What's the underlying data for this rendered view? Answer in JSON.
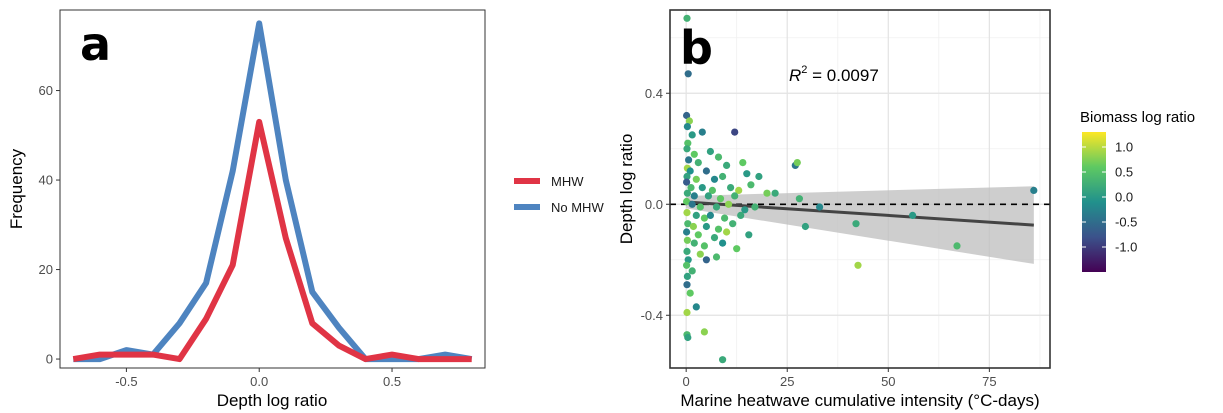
{
  "chart_data": [
    {
      "panel_label": "a",
      "type": "line",
      "xlabel": "Depth log ratio",
      "ylabel": "Frequency",
      "xlim": [
        -0.75,
        0.85
      ],
      "ylim": [
        -2,
        78
      ],
      "x_ticks": [
        -0.5,
        0.0,
        0.5
      ],
      "x_tick_labels": [
        "-0.5",
        "0.0",
        "0.5"
      ],
      "y_ticks": [
        0,
        20,
        40,
        60
      ],
      "y_tick_labels": [
        "0",
        "20",
        "40",
        "60"
      ],
      "grid": false,
      "legend_position": "right",
      "x": [
        -0.7,
        -0.6,
        -0.5,
        -0.4,
        -0.3,
        -0.2,
        -0.1,
        0.0,
        0.1,
        0.2,
        0.3,
        0.4,
        0.5,
        0.6,
        0.7,
        0.8
      ],
      "series": [
        {
          "name": "MHW",
          "color": "#e03445",
          "values": [
            0,
            1,
            1,
            1,
            0,
            9,
            21,
            53,
            27,
            8,
            3,
            0,
            1,
            0,
            0,
            0
          ]
        },
        {
          "name": "No MHW",
          "color": "#4e84c0",
          "values": [
            0,
            0,
            2,
            1,
            8,
            17,
            42,
            75,
            40,
            15,
            7,
            0,
            0,
            0,
            1,
            0
          ]
        }
      ]
    },
    {
      "panel_label": "b",
      "type": "scatter",
      "xlabel": "Marine heatwave cumulative intensity (°C-days)",
      "ylabel": "Depth log ratio",
      "xlim": [
        -4,
        90
      ],
      "ylim": [
        -0.59,
        0.7
      ],
      "x_ticks": [
        0,
        25,
        50,
        75
      ],
      "x_tick_labels": [
        "0",
        "25",
        "50",
        "75"
      ],
      "y_ticks": [
        -0.4,
        0.0,
        0.4
      ],
      "y_tick_labels": [
        "-0.4",
        "0.0",
        "0.4"
      ],
      "grid": true,
      "annotation": {
        "prefix": "R",
        "superscript": "2",
        "text": " = 0.0097"
      },
      "reference_line_y": 0,
      "regression": {
        "x": [
          0,
          86
        ],
        "y": [
          0.008,
          -0.075
        ],
        "ci_upper_end": 0.065,
        "ci_lower_end": -0.215,
        "ci_at_zero": [
          -0.015,
          0.03
        ]
      },
      "colorbar": {
        "title": "Biomass log ratio",
        "range": [
          -1.5,
          1.3
        ],
        "ticks": [
          1.0,
          0.5,
          0.0,
          -0.5,
          -1.0
        ],
        "tick_labels": [
          "1.0",
          "0.5",
          "0.0",
          "-0.5",
          "-1.0"
        ],
        "palette": "viridis"
      },
      "points": [
        {
          "x": 0.2,
          "y": 0.67,
          "c": 0.3
        },
        {
          "x": 0.5,
          "y": 0.47,
          "c": -0.5
        },
        {
          "x": 0.1,
          "y": 0.32,
          "c": -0.6
        },
        {
          "x": 0.8,
          "y": 0.3,
          "c": 0.8
        },
        {
          "x": 0.3,
          "y": 0.28,
          "c": -0.2
        },
        {
          "x": 1.5,
          "y": 0.25,
          "c": 0.0
        },
        {
          "x": 4.0,
          "y": 0.26,
          "c": -0.3
        },
        {
          "x": 12.0,
          "y": 0.26,
          "c": -0.9
        },
        {
          "x": 0.4,
          "y": 0.22,
          "c": 0.5
        },
        {
          "x": 0.2,
          "y": 0.2,
          "c": 0.2
        },
        {
          "x": 2.0,
          "y": 0.18,
          "c": 0.6
        },
        {
          "x": 6.0,
          "y": 0.19,
          "c": 0.1
        },
        {
          "x": 0.6,
          "y": 0.16,
          "c": -0.4
        },
        {
          "x": 3.0,
          "y": 0.15,
          "c": 0.3
        },
        {
          "x": 8.0,
          "y": 0.17,
          "c": 0.4
        },
        {
          "x": 0.3,
          "y": 0.13,
          "c": 0.9
        },
        {
          "x": 1.0,
          "y": 0.12,
          "c": -0.1
        },
        {
          "x": 5.0,
          "y": 0.12,
          "c": -0.5
        },
        {
          "x": 10.0,
          "y": 0.14,
          "c": 0.2
        },
        {
          "x": 14.0,
          "y": 0.15,
          "c": 0.6
        },
        {
          "x": 15.0,
          "y": 0.11,
          "c": 0.0
        },
        {
          "x": 0.2,
          "y": 0.1,
          "c": 0.1
        },
        {
          "x": 2.5,
          "y": 0.09,
          "c": 0.7
        },
        {
          "x": 7.0,
          "y": 0.09,
          "c": -0.2
        },
        {
          "x": 9.0,
          "y": 0.1,
          "c": 0.3
        },
        {
          "x": 18.0,
          "y": 0.1,
          "c": 0.1
        },
        {
          "x": 0.1,
          "y": 0.08,
          "c": -0.7
        },
        {
          "x": 1.2,
          "y": 0.06,
          "c": 0.4
        },
        {
          "x": 4.0,
          "y": 0.06,
          "c": 0.0
        },
        {
          "x": 6.5,
          "y": 0.05,
          "c": 0.5
        },
        {
          "x": 11.0,
          "y": 0.06,
          "c": 0.2
        },
        {
          "x": 13.0,
          "y": 0.05,
          "c": 0.9
        },
        {
          "x": 16.0,
          "y": 0.07,
          "c": 0.4
        },
        {
          "x": 0.3,
          "y": 0.04,
          "c": 0.2
        },
        {
          "x": 2.0,
          "y": 0.03,
          "c": -0.3
        },
        {
          "x": 5.5,
          "y": 0.03,
          "c": 0.1
        },
        {
          "x": 8.5,
          "y": 0.02,
          "c": 0.6
        },
        {
          "x": 12.0,
          "y": 0.03,
          "c": 0.3
        },
        {
          "x": 20.0,
          "y": 0.04,
          "c": 0.7
        },
        {
          "x": 0.1,
          "y": 0.01,
          "c": 0.6
        },
        {
          "x": 1.5,
          "y": 0.0,
          "c": -0.4
        },
        {
          "x": 3.5,
          "y": -0.01,
          "c": 0.5
        },
        {
          "x": 7.5,
          "y": -0.01,
          "c": 0.2
        },
        {
          "x": 10.5,
          "y": 0.0,
          "c": 0.8
        },
        {
          "x": 14.5,
          "y": -0.02,
          "c": 0.0
        },
        {
          "x": 17.0,
          "y": -0.01,
          "c": 0.3
        },
        {
          "x": 0.2,
          "y": -0.03,
          "c": 0.9
        },
        {
          "x": 2.5,
          "y": -0.04,
          "c": 0.1
        },
        {
          "x": 4.5,
          "y": -0.05,
          "c": 0.6
        },
        {
          "x": 6.0,
          "y": -0.04,
          "c": -0.2
        },
        {
          "x": 9.5,
          "y": -0.05,
          "c": 0.4
        },
        {
          "x": 13.5,
          "y": -0.04,
          "c": 0.2
        },
        {
          "x": 0.4,
          "y": -0.07,
          "c": 0.4
        },
        {
          "x": 1.8,
          "y": -0.08,
          "c": 0.8
        },
        {
          "x": 5.0,
          "y": -0.08,
          "c": 0.0
        },
        {
          "x": 8.0,
          "y": -0.09,
          "c": 0.5
        },
        {
          "x": 11.5,
          "y": -0.07,
          "c": 0.3
        },
        {
          "x": 0.1,
          "y": -0.1,
          "c": -0.3
        },
        {
          "x": 3.0,
          "y": -0.11,
          "c": 0.6
        },
        {
          "x": 7.0,
          "y": -0.12,
          "c": 0.2
        },
        {
          "x": 10.0,
          "y": -0.1,
          "c": 0.9
        },
        {
          "x": 15.5,
          "y": -0.11,
          "c": 0.1
        },
        {
          "x": 0.3,
          "y": -0.13,
          "c": 0.7
        },
        {
          "x": 2.0,
          "y": -0.14,
          "c": 0.3
        },
        {
          "x": 4.5,
          "y": -0.15,
          "c": 0.5
        },
        {
          "x": 9.0,
          "y": -0.14,
          "c": -0.1
        },
        {
          "x": 12.5,
          "y": -0.16,
          "c": 0.6
        },
        {
          "x": 0.2,
          "y": -0.17,
          "c": 0.2
        },
        {
          "x": 3.5,
          "y": -0.18,
          "c": 0.8
        },
        {
          "x": 7.5,
          "y": -0.19,
          "c": 0.4
        },
        {
          "x": 0.5,
          "y": -0.2,
          "c": 0.0
        },
        {
          "x": 5.0,
          "y": -0.2,
          "c": -0.6
        },
        {
          "x": 0.1,
          "y": -0.22,
          "c": 0.5
        },
        {
          "x": 1.5,
          "y": -0.24,
          "c": 0.3
        },
        {
          "x": 0.3,
          "y": -0.26,
          "c": 0.1
        },
        {
          "x": 0.2,
          "y": -0.29,
          "c": -0.5
        },
        {
          "x": 1.0,
          "y": -0.32,
          "c": 0.6
        },
        {
          "x": 2.5,
          "y": -0.37,
          "c": -0.2
        },
        {
          "x": 0.2,
          "y": -0.39,
          "c": 0.9
        },
        {
          "x": 4.5,
          "y": -0.46,
          "c": 0.8
        },
        {
          "x": 0.2,
          "y": -0.47,
          "c": 0.4
        },
        {
          "x": 0.4,
          "y": -0.48,
          "c": 0.1
        },
        {
          "x": 9.0,
          "y": -0.56,
          "c": 0.2
        },
        {
          "x": 27.0,
          "y": 0.14,
          "c": -0.4
        },
        {
          "x": 27.5,
          "y": 0.15,
          "c": 0.7
        },
        {
          "x": 22.0,
          "y": 0.04,
          "c": 0.2
        },
        {
          "x": 28.0,
          "y": 0.02,
          "c": 0.3
        },
        {
          "x": 29.5,
          "y": -0.08,
          "c": 0.1
        },
        {
          "x": 33.0,
          "y": -0.01,
          "c": -0.2
        },
        {
          "x": 42.0,
          "y": -0.07,
          "c": 0.2
        },
        {
          "x": 42.5,
          "y": -0.22,
          "c": 0.9
        },
        {
          "x": 56.0,
          "y": -0.04,
          "c": 0.0
        },
        {
          "x": 67.0,
          "y": -0.15,
          "c": 0.4
        },
        {
          "x": 86.0,
          "y": 0.05,
          "c": -0.3
        }
      ]
    }
  ]
}
